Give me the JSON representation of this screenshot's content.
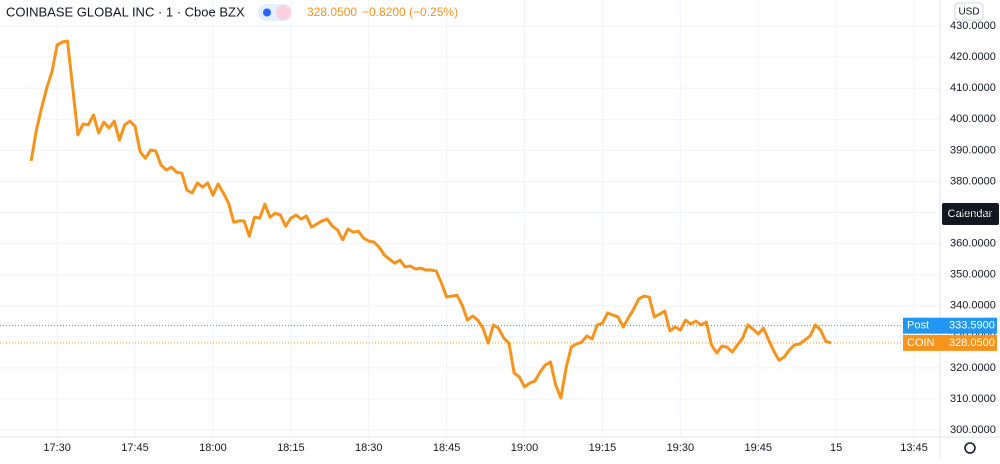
{
  "chart_data": {
    "type": "line",
    "title": "COINBASE GLOBAL INC · 1 · Cboe BZX",
    "price": "328.0500",
    "change": "−0.8200 (−0.25%)",
    "currency": "USD",
    "button": "Calendar",
    "x": [
      "17:25",
      "17:26",
      "17:27",
      "17:28",
      "17:29",
      "17:30",
      "17:31",
      "17:32",
      "17:33",
      "17:34",
      "17:35",
      "17:36",
      "17:37",
      "17:38",
      "17:39",
      "17:40",
      "17:41",
      "17:42",
      "17:43",
      "17:44",
      "17:45",
      "17:46",
      "17:47",
      "17:48",
      "17:49",
      "17:50",
      "17:51",
      "17:52",
      "17:53",
      "17:54",
      "17:55",
      "17:56",
      "17:57",
      "17:58",
      "17:59",
      "18:00",
      "18:01",
      "18:02",
      "18:03",
      "18:04",
      "18:05",
      "18:06",
      "18:07",
      "18:08",
      "18:09",
      "18:10",
      "18:11",
      "18:12",
      "18:13",
      "18:14",
      "18:15",
      "18:16",
      "18:17",
      "18:18",
      "18:19",
      "18:20",
      "18:21",
      "18:22",
      "18:23",
      "18:24",
      "18:25",
      "18:26",
      "18:27",
      "18:28",
      "18:29",
      "18:30",
      "18:31",
      "18:32",
      "18:33",
      "18:34",
      "18:35",
      "18:36",
      "18:37",
      "18:38",
      "18:39",
      "18:40",
      "18:41",
      "18:42",
      "18:43",
      "18:44",
      "18:45",
      "18:46",
      "18:47",
      "18:48",
      "18:49",
      "18:50",
      "18:51",
      "18:52",
      "18:53",
      "18:54",
      "18:55",
      "18:56",
      "18:57",
      "18:58",
      "18:59",
      "19:00",
      "19:01",
      "19:02",
      "19:03",
      "19:04",
      "19:05",
      "19:06",
      "19:07",
      "19:08",
      "19:09",
      "19:10",
      "19:11",
      "19:12",
      "19:13",
      "19:14",
      "19:15",
      "19:16",
      "19:17",
      "19:18",
      "19:19",
      "19:20",
      "19:21",
      "19:22",
      "19:23",
      "19:24",
      "19:25",
      "19:26",
      "19:27",
      "19:28",
      "19:29",
      "19:30",
      "19:31",
      "19:32",
      "19:33",
      "19:34",
      "19:35",
      "19:36",
      "19:37",
      "19:38",
      "19:39",
      "19:40",
      "19:41",
      "19:42",
      "19:43",
      "19:44",
      "19:45",
      "19:46",
      "19:47",
      "19:48",
      "19:49",
      "19:50",
      "19:51",
      "19:52",
      "19:53",
      "19:54",
      "19:55",
      "19:56",
      "19:57",
      "19:58",
      "19:59"
    ],
    "series": [
      {
        "name": "COIN",
        "color": "#f7931a",
        "values": [
          386.6,
          396.5,
          403.6,
          410.1,
          415.2,
          423.9,
          424.9,
          425.2,
          410.1,
          395.0,
          398.5,
          398.2,
          401.4,
          395.6,
          399.1,
          397.2,
          399.4,
          393.3,
          398.2,
          399.4,
          397.8,
          389.5,
          387.5,
          390.1,
          389.8,
          385.3,
          383.7,
          384.6,
          383.0,
          382.7,
          377.2,
          376.3,
          379.5,
          378.2,
          379.5,
          375.6,
          379.2,
          376.3,
          373.1,
          366.9,
          367.3,
          367.3,
          362.4,
          368.5,
          368.2,
          372.7,
          368.5,
          369.8,
          369.2,
          365.6,
          368.2,
          369.2,
          367.9,
          368.9,
          365.3,
          366.3,
          367.3,
          367.9,
          365.6,
          364.4,
          361.2,
          364.7,
          363.7,
          364.0,
          361.8,
          360.8,
          360.5,
          358.9,
          356.3,
          355.0,
          353.7,
          354.7,
          352.5,
          352.8,
          351.8,
          352.1,
          351.5,
          351.5,
          351.2,
          347.3,
          342.8,
          343.1,
          343.4,
          340.2,
          335.4,
          336.7,
          335.4,
          332.8,
          328.0,
          333.8,
          332.8,
          329.6,
          328.0,
          318.4,
          317.1,
          313.9,
          315.1,
          315.8,
          318.7,
          320.9,
          321.9,
          314.5,
          310.3,
          320.0,
          326.7,
          327.7,
          328.3,
          330.3,
          329.3,
          333.8,
          334.4,
          337.7,
          337.0,
          336.4,
          333.2,
          336.1,
          338.9,
          342.2,
          343.1,
          342.8,
          336.4,
          337.3,
          338.3,
          331.9,
          333.2,
          332.2,
          335.4,
          334.1,
          335.1,
          333.8,
          334.8,
          327.4,
          324.8,
          327.0,
          326.7,
          325.1,
          327.4,
          329.6,
          333.8,
          332.5,
          330.9,
          332.8,
          329.0,
          325.4,
          322.5,
          323.5,
          325.8,
          327.4,
          327.7,
          329.0,
          330.3,
          333.8,
          332.2,
          328.6,
          328.05
        ]
      }
    ],
    "price_lines": [
      {
        "name": "Post",
        "value": 333.59,
        "label": "333.5900",
        "color": "#2196f3"
      },
      {
        "name": "COIN",
        "value": 328.05,
        "label": "328.0500",
        "color": "#f7931a"
      }
    ],
    "xlim": [
      "17:19",
      "20:20"
    ],
    "xticks": [
      "17:30",
      "17:45",
      "18:00",
      "18:15",
      "18:30",
      "18:45",
      "19:00",
      "19:15",
      "19:30",
      "19:45",
      {
        "value": "20:00",
        "label": "15"
      },
      {
        "value": "20:15",
        "label": "13:45"
      }
    ],
    "ylim": [
      296.8,
      438.4
    ],
    "yticks": [
      {
        "value": 300,
        "label": "300.0000"
      },
      {
        "value": 310,
        "label": "310.0000"
      },
      {
        "value": 320,
        "label": "320.0000"
      },
      {
        "value": 330,
        "label": "330.0000"
      },
      {
        "value": 340,
        "label": "340.0000"
      },
      {
        "value": 350,
        "label": "350.0000"
      },
      {
        "value": 360,
        "label": "360.0000"
      },
      {
        "value": 370,
        "label": "370.0000"
      },
      {
        "value": 380,
        "label": "380.0000"
      },
      {
        "value": 390,
        "label": "390.0000"
      },
      {
        "value": 400,
        "label": "400.0000"
      },
      {
        "value": 410,
        "label": "410.0000"
      },
      {
        "value": 420,
        "label": "420.0000"
      },
      {
        "value": 430,
        "label": "430.0000"
      }
    ],
    "grid": true
  }
}
